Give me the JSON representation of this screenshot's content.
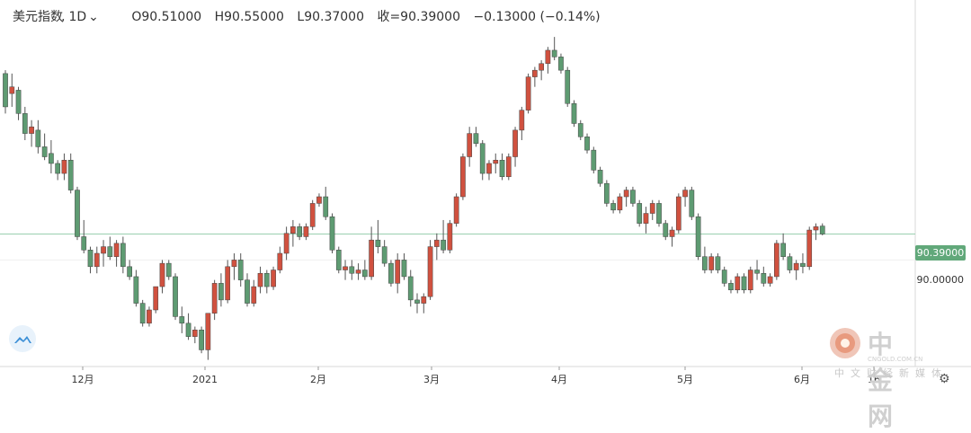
{
  "header": {
    "symbol": "美元指数",
    "interval": "1D",
    "open": "O90.51000",
    "high": "H90.55000",
    "low": "L90.37000",
    "close": "收=90.39000",
    "change": "−0.13000 (−0.14%)"
  },
  "price_tag": "90.39000",
  "price_axis_label": "90.00000",
  "watermark": {
    "brand": "中金网",
    "url": "CNGOLD.COM.CN",
    "slogan": "中文财经新媒体"
  },
  "colors": {
    "up": "#d0513f",
    "down": "#5e9b72",
    "last_line": "#9ad0b0",
    "grid": "#f0f0f0"
  },
  "icons": {
    "logo": "tradingview-cloud-icon",
    "settings": "gear-icon",
    "interval": "chevron-down-icon"
  },
  "chart_data": {
    "type": "candlestick",
    "title": "美元指数, 1D",
    "x_tick_labels": [
      "12月",
      "2021",
      "2月",
      "3月",
      "4月",
      "5月",
      "6月",
      "16"
    ],
    "y_tick_labels": [
      "90.00000"
    ],
    "last_price": 90.39,
    "ohlc_approx": [
      [
        92.8,
        92.85,
        92.2,
        92.3
      ],
      [
        92.5,
        92.8,
        92.3,
        92.6
      ],
      [
        92.55,
        92.6,
        92.1,
        92.2
      ],
      [
        92.2,
        92.3,
        91.8,
        91.9
      ],
      [
        91.9,
        92.1,
        91.7,
        92.0
      ],
      [
        91.95,
        92.1,
        91.6,
        91.7
      ],
      [
        91.7,
        91.9,
        91.5,
        91.55
      ],
      [
        91.6,
        91.8,
        91.3,
        91.45
      ],
      [
        91.45,
        91.5,
        91.2,
        91.3
      ],
      [
        91.3,
        91.6,
        91.2,
        91.5
      ],
      [
        91.5,
        91.6,
        91.0,
        91.05
      ],
      [
        91.05,
        91.1,
        90.3,
        90.35
      ],
      [
        90.35,
        90.6,
        90.1,
        90.15
      ],
      [
        90.15,
        90.2,
        89.8,
        89.9
      ],
      [
        89.9,
        90.2,
        89.8,
        90.1
      ],
      [
        90.1,
        90.3,
        89.9,
        90.2
      ],
      [
        90.2,
        90.35,
        90.0,
        90.05
      ],
      [
        90.05,
        90.3,
        89.9,
        90.25
      ],
      [
        90.25,
        90.35,
        89.8,
        89.9
      ],
      [
        89.9,
        90.0,
        89.7,
        89.75
      ],
      [
        89.75,
        89.85,
        89.3,
        89.35
      ],
      [
        89.35,
        89.4,
        89.0,
        89.05
      ],
      [
        89.05,
        89.3,
        89.0,
        89.25
      ],
      [
        89.25,
        89.6,
        89.2,
        89.6
      ],
      [
        89.6,
        90.0,
        89.5,
        89.95
      ],
      [
        89.95,
        90.0,
        89.7,
        89.75
      ],
      [
        89.75,
        89.8,
        89.1,
        89.15
      ],
      [
        89.15,
        89.3,
        88.9,
        89.05
      ],
      [
        89.05,
        89.2,
        88.8,
        88.85
      ],
      [
        88.85,
        89.0,
        88.75,
        88.95
      ],
      [
        88.95,
        89.0,
        88.6,
        88.65
      ],
      [
        88.65,
        89.2,
        88.5,
        89.2
      ],
      [
        89.2,
        89.7,
        89.1,
        89.65
      ],
      [
        89.65,
        89.8,
        89.3,
        89.4
      ],
      [
        89.4,
        90.0,
        89.35,
        89.9
      ],
      [
        89.9,
        90.1,
        89.7,
        90.0
      ],
      [
        90.0,
        90.1,
        89.6,
        89.7
      ],
      [
        89.7,
        89.8,
        89.3,
        89.35
      ],
      [
        89.35,
        89.7,
        89.3,
        89.6
      ],
      [
        89.6,
        89.9,
        89.5,
        89.8
      ],
      [
        89.8,
        89.85,
        89.5,
        89.6
      ],
      [
        89.6,
        89.9,
        89.55,
        89.85
      ],
      [
        89.85,
        90.2,
        89.8,
        90.1
      ],
      [
        90.1,
        90.5,
        90.0,
        90.4
      ],
      [
        90.4,
        90.6,
        90.2,
        90.5
      ],
      [
        90.5,
        90.55,
        90.3,
        90.35
      ],
      [
        90.35,
        90.55,
        90.3,
        90.5
      ],
      [
        90.5,
        90.9,
        90.45,
        90.85
      ],
      [
        90.85,
        91.0,
        90.8,
        90.95
      ],
      [
        90.95,
        91.1,
        90.6,
        90.65
      ],
      [
        90.65,
        90.7,
        90.1,
        90.15
      ],
      [
        90.15,
        90.2,
        89.8,
        89.85
      ],
      [
        89.85,
        90.0,
        89.7,
        89.9
      ],
      [
        89.9,
        90.0,
        89.7,
        89.8
      ],
      [
        89.8,
        89.95,
        89.7,
        89.85
      ],
      [
        89.85,
        90.0,
        89.7,
        89.75
      ],
      [
        89.75,
        90.5,
        89.7,
        90.3
      ],
      [
        90.3,
        90.6,
        90.1,
        90.2
      ],
      [
        90.2,
        90.3,
        89.9,
        89.95
      ],
      [
        89.95,
        90.0,
        89.6,
        89.65
      ],
      [
        89.65,
        90.1,
        89.5,
        90.0
      ],
      [
        90.0,
        90.1,
        89.7,
        89.75
      ],
      [
        89.75,
        89.85,
        89.3,
        89.4
      ],
      [
        89.4,
        89.5,
        89.2,
        89.35
      ],
      [
        89.35,
        89.5,
        89.2,
        89.45
      ],
      [
        89.45,
        90.3,
        89.4,
        90.2
      ],
      [
        90.2,
        90.4,
        90.0,
        90.3
      ],
      [
        90.3,
        90.6,
        90.1,
        90.15
      ],
      [
        90.15,
        90.6,
        90.1,
        90.55
      ],
      [
        90.55,
        91.0,
        90.5,
        90.95
      ],
      [
        90.95,
        91.6,
        90.9,
        91.55
      ],
      [
        91.55,
        92.0,
        91.4,
        91.9
      ],
      [
        91.9,
        92.0,
        91.7,
        91.75
      ],
      [
        91.75,
        91.8,
        91.2,
        91.3
      ],
      [
        91.3,
        91.5,
        91.2,
        91.45
      ],
      [
        91.45,
        91.6,
        91.3,
        91.5
      ],
      [
        91.5,
        91.6,
        91.2,
        91.25
      ],
      [
        91.25,
        91.6,
        91.2,
        91.55
      ],
      [
        91.55,
        92.0,
        91.4,
        91.95
      ],
      [
        91.95,
        92.3,
        91.8,
        92.25
      ],
      [
        92.25,
        92.8,
        92.2,
        92.75
      ],
      [
        92.75,
        92.9,
        92.6,
        92.85
      ],
      [
        92.85,
        93.0,
        92.7,
        92.95
      ],
      [
        92.95,
        93.2,
        92.8,
        93.15
      ],
      [
        93.15,
        93.35,
        93.0,
        93.05
      ],
      [
        93.05,
        93.1,
        92.8,
        92.85
      ],
      [
        92.85,
        92.9,
        92.3,
        92.35
      ],
      [
        92.35,
        92.4,
        92.0,
        92.05
      ],
      [
        92.05,
        92.1,
        91.8,
        91.85
      ],
      [
        91.85,
        91.9,
        91.6,
        91.65
      ],
      [
        91.65,
        91.7,
        91.3,
        91.35
      ],
      [
        91.35,
        91.4,
        91.1,
        91.15
      ],
      [
        91.15,
        91.2,
        90.8,
        90.85
      ],
      [
        90.85,
        90.9,
        90.7,
        90.75
      ],
      [
        90.75,
        91.0,
        90.7,
        90.95
      ],
      [
        90.95,
        91.1,
        90.8,
        91.05
      ],
      [
        91.05,
        91.1,
        90.8,
        90.85
      ],
      [
        90.85,
        90.9,
        90.5,
        90.55
      ],
      [
        90.55,
        90.8,
        90.4,
        90.7
      ],
      [
        90.7,
        90.9,
        90.6,
        90.85
      ],
      [
        90.85,
        90.9,
        90.5,
        90.55
      ],
      [
        90.55,
        90.6,
        90.3,
        90.35
      ],
      [
        90.35,
        90.5,
        90.2,
        90.45
      ],
      [
        90.45,
        91.0,
        90.4,
        90.95
      ],
      [
        90.95,
        91.1,
        90.8,
        91.05
      ],
      [
        91.05,
        91.1,
        90.6,
        90.65
      ],
      [
        90.65,
        90.7,
        90.0,
        90.05
      ],
      [
        90.05,
        90.2,
        89.8,
        89.85
      ],
      [
        89.85,
        90.1,
        89.8,
        90.05
      ],
      [
        90.05,
        90.1,
        89.8,
        89.85
      ],
      [
        89.85,
        89.9,
        89.6,
        89.65
      ],
      [
        89.65,
        89.7,
        89.5,
        89.55
      ],
      [
        89.55,
        89.8,
        89.5,
        89.75
      ],
      [
        89.75,
        89.8,
        89.5,
        89.55
      ],
      [
        89.55,
        89.9,
        89.5,
        89.85
      ],
      [
        89.85,
        90.0,
        89.7,
        89.8
      ],
      [
        89.8,
        89.9,
        89.6,
        89.65
      ],
      [
        89.65,
        89.8,
        89.6,
        89.75
      ],
      [
        89.75,
        90.3,
        89.7,
        90.25
      ],
      [
        90.25,
        90.4,
        90.0,
        90.05
      ],
      [
        90.05,
        90.1,
        89.8,
        89.85
      ],
      [
        89.85,
        90.0,
        89.7,
        89.95
      ],
      [
        89.95,
        90.1,
        89.8,
        89.9
      ],
      [
        89.9,
        90.5,
        89.85,
        90.45
      ],
      [
        90.45,
        90.55,
        90.3,
        90.5
      ],
      [
        90.51,
        90.55,
        90.37,
        90.39
      ]
    ]
  }
}
